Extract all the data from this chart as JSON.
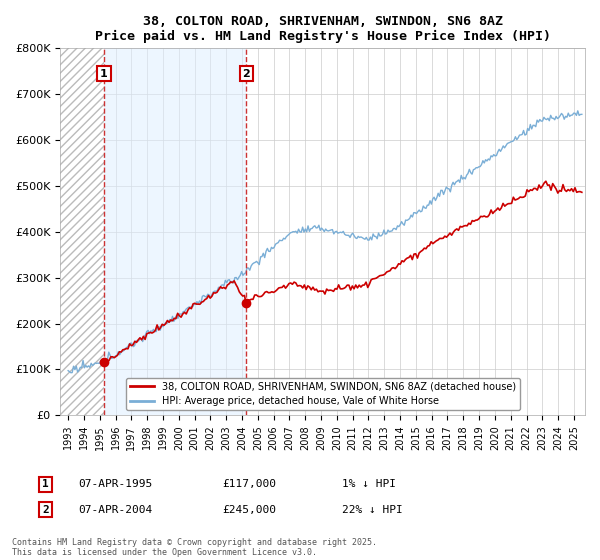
{
  "title": "38, COLTON ROAD, SHRIVENHAM, SWINDON, SN6 8AZ",
  "subtitle": "Price paid vs. HM Land Registry's House Price Index (HPI)",
  "ylim": [
    0,
    800000
  ],
  "yticks": [
    0,
    100000,
    200000,
    300000,
    400000,
    500000,
    600000,
    700000,
    800000
  ],
  "ytick_labels": [
    "£0",
    "£100K",
    "£200K",
    "£300K",
    "£400K",
    "£500K",
    "£600K",
    "£700K",
    "£800K"
  ],
  "sale1_year": 1995.27,
  "sale1_price": 117000,
  "sale2_year": 2004.27,
  "sale2_price": 245000,
  "line_red_color": "#cc0000",
  "line_blue_color": "#7aaed6",
  "vline_color": "#cc3333",
  "bg_hatch_color": "#e8e8e8",
  "bg_blue_color": "#ddeeff",
  "legend1": "38, COLTON ROAD, SHRIVENHAM, SWINDON, SN6 8AZ (detached house)",
  "legend2": "HPI: Average price, detached house, Vale of White Horse",
  "footnote": "Contains HM Land Registry data © Crown copyright and database right 2025.\nThis data is licensed under the Open Government Licence v3.0.",
  "background_color": "#ffffff",
  "xlim_start": 1992.5,
  "xlim_end": 2025.7
}
